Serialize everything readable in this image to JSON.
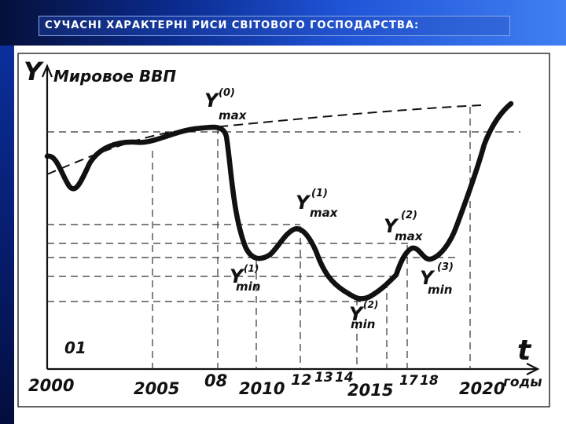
{
  "slide": {
    "title": "СУЧАСНІ ХАРАКТЕРНІ РИСИ СВІТОВОГО ГОСПОДАРСТВА:"
  },
  "colors": {
    "header_dark": "#05103a",
    "header_light": "#3f7ff2",
    "ink": "#111111"
  },
  "diagram": {
    "y_axis_letter": "Y",
    "y_axis_label": "Мировое ВВП",
    "x_axis_letter": "t",
    "x_axis_unit": "годы",
    "corner_note": "01",
    "x_ticks": [
      "2000",
      "2005",
      "08",
      "2010",
      "12",
      "13",
      "14",
      "2015",
      "17",
      "18",
      "2020"
    ],
    "peaks": [
      {
        "base": "Y",
        "sub": "max",
        "sup": "(0)"
      },
      {
        "base": "Y",
        "sub": "max",
        "sup": "(1)"
      },
      {
        "base": "Y",
        "sub": "max",
        "sup": "(2)"
      }
    ],
    "troughs": [
      {
        "base": "Y",
        "sub": "min",
        "sup": "(1)"
      },
      {
        "base": "Y",
        "sub": "min",
        "sup": "(2)"
      },
      {
        "base": "Y",
        "sub": "min",
        "sup": "(3)"
      }
    ]
  }
}
